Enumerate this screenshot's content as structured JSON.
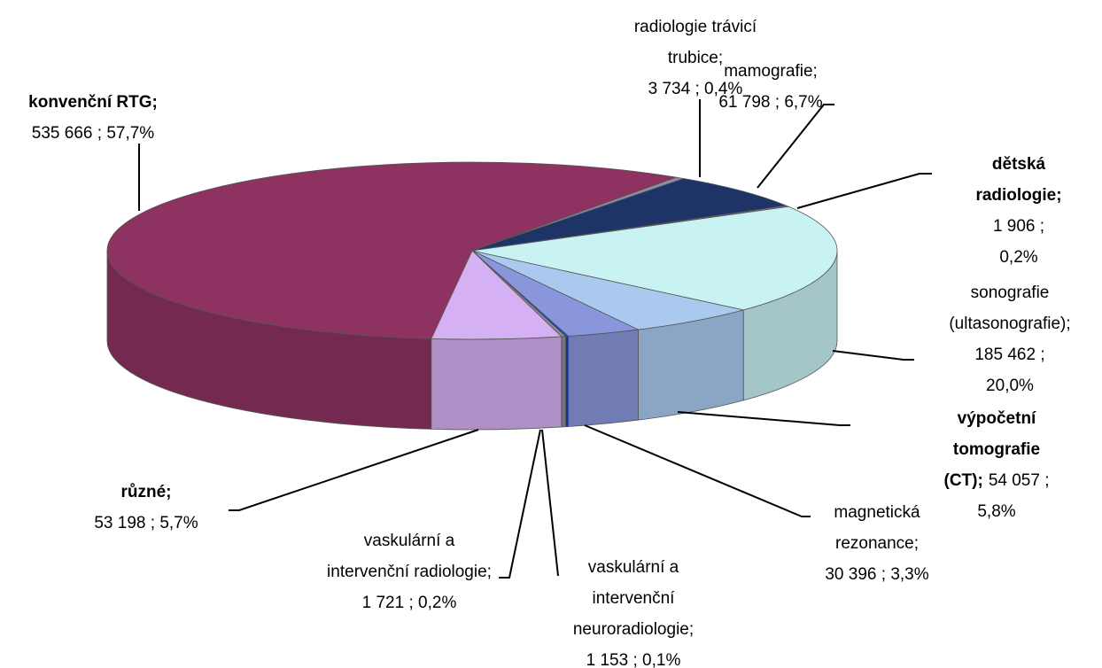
{
  "chart_data": {
    "type": "pie3d",
    "categories": [
      "radiologie trávicí\ntrubice;",
      "mamografie;",
      "dětská radiologie;",
      "sonografie\n(ultasonografie);",
      "výpočetní tomografie\n(CT);",
      "magnetická\nrezonance;",
      "vaskulární a\nintervenční\nneuroradiologie;",
      "vaskulární a\nintervenční radiologie;",
      "různé;",
      "konvenční RTG;"
    ],
    "values": [
      3734,
      61798,
      1906,
      185462,
      54057,
      30396,
      1153,
      1721,
      53198,
      535666
    ],
    "value_labels": [
      "3 734  ; 0,4%",
      "61 798  ; 6,7%",
      "1 906  ; 0,2%",
      "185 462  ; 20,0%",
      "54 057  ; 5,8%",
      "30 396  ; 3,3%",
      "1 153  ; 0,1%",
      "1 721  ; 0,2%",
      "53 198  ; 5,7%",
      "535 666  ; 57,7%"
    ],
    "colors": [
      "#8a8fa8",
      "#1e3466",
      "#6c7a96",
      "#c9f2f2",
      "#a9c9ef",
      "#8a96dc",
      "#2340b8",
      "#8a8f9c",
      "#d5b0f2",
      "#8e3262"
    ]
  }
}
